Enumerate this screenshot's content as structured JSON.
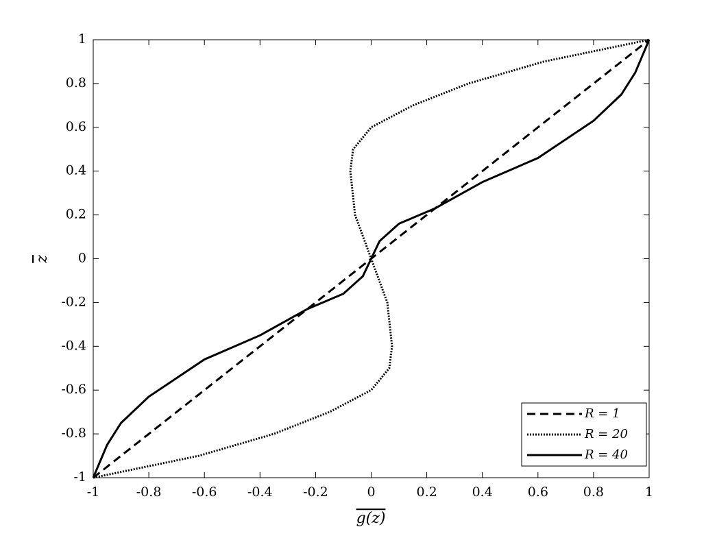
{
  "chart_data": {
    "type": "line",
    "x_label": "g(z)",
    "y_label": "z",
    "xlim": [
      -1,
      1
    ],
    "ylim": [
      -1,
      1
    ],
    "xticks": [
      -1,
      -0.8,
      -0.6,
      -0.4,
      -0.2,
      0,
      0.2,
      0.4,
      0.6,
      0.8,
      1
    ],
    "yticks": [
      -1,
      -0.8,
      -0.6,
      -0.4,
      -0.2,
      0,
      0.2,
      0.4,
      0.6,
      0.8,
      1
    ],
    "legend": "lower right",
    "series": [
      {
        "name": "R = 1",
        "color": "#000000",
        "dash": "dashed",
        "x": [
          -1,
          -0.5,
          0,
          0.5,
          1
        ],
        "values": [
          -1,
          -0.5,
          0,
          0.5,
          1
        ]
      },
      {
        "name": "R = 20",
        "color": "#000000",
        "dash": "dotted",
        "x": [
          -1,
          -0.62,
          -0.35,
          -0.15,
          0,
          0.065,
          0.075,
          0.058,
          0,
          -0.058,
          -0.075,
          -0.065,
          0,
          0.15,
          0.35,
          0.62,
          1
        ],
        "values": [
          -1,
          -0.9,
          -0.8,
          -0.7,
          -0.6,
          -0.5,
          -0.4,
          -0.2,
          0,
          0.2,
          0.4,
          0.5,
          0.6,
          0.7,
          0.8,
          0.9,
          1
        ]
      },
      {
        "name": "R = 40",
        "color": "#000000",
        "dash": "solid",
        "x": [
          -1,
          -0.95,
          -0.9,
          -0.8,
          -0.6,
          -0.4,
          -0.23,
          -0.1,
          -0.03,
          0,
          0.03,
          0.1,
          0.23,
          0.4,
          0.6,
          0.8,
          0.9,
          0.95,
          1
        ],
        "values": [
          -1,
          -0.85,
          -0.75,
          -0.63,
          -0.46,
          -0.35,
          -0.23,
          -0.16,
          -0.08,
          0,
          0.08,
          0.16,
          0.23,
          0.35,
          0.46,
          0.63,
          0.75,
          0.85,
          1
        ]
      }
    ]
  }
}
